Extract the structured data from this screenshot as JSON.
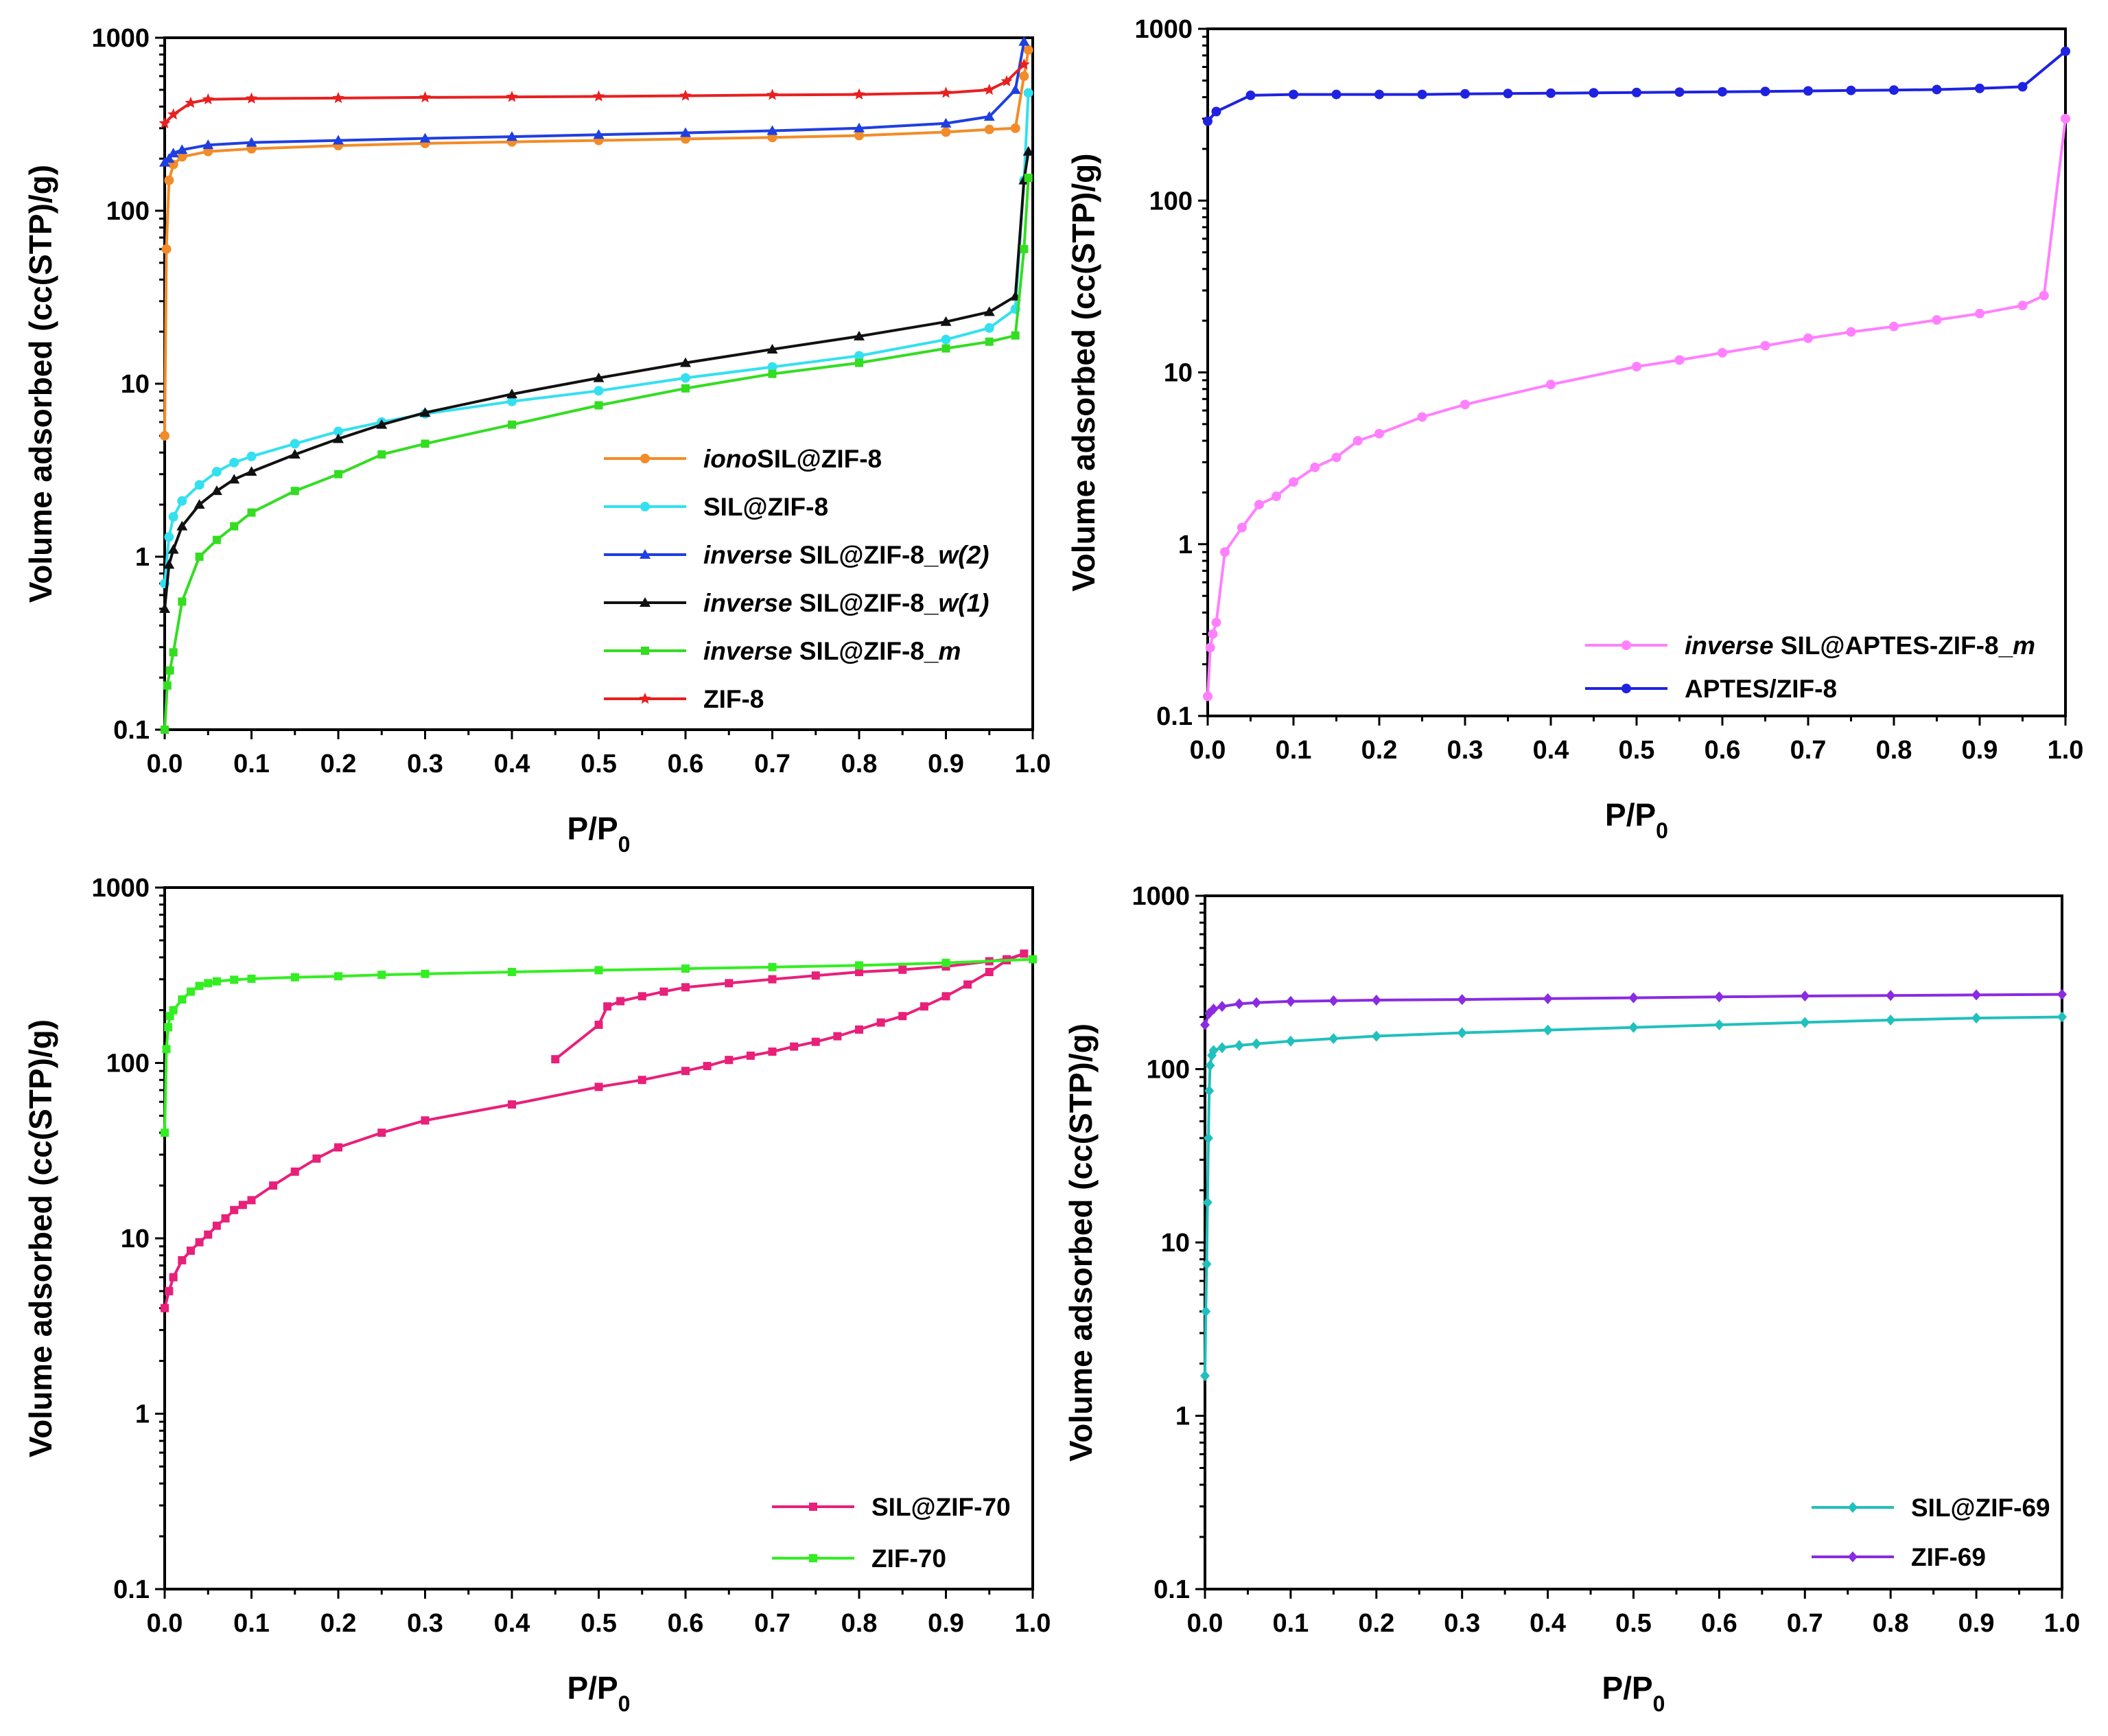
{
  "figure": {
    "panels_count": 4
  },
  "chart_data": [
    {
      "type": "line",
      "title": "",
      "xlabel": "P/P",
      "xlabel_subscript": "0",
      "ylabel": "Volume adsorbed (cc(STP)/g)",
      "yscale": "log",
      "xlim": [
        0,
        1.0
      ],
      "ylim": [
        0.1,
        1000
      ],
      "xticks": [
        "0.0",
        "0.1",
        "0.2",
        "0.3",
        "0.4",
        "0.5",
        "0.6",
        "0.7",
        "0.8",
        "0.9",
        "1.0"
      ],
      "yticks": [
        "0.1",
        "1",
        "10",
        "100",
        "1000"
      ],
      "legend_position": "bottom-right",
      "series": [
        {
          "name": "ionoSIL@ZIF-8",
          "legend_italic": "iono",
          "legend_rest": "SIL@ZIF-8",
          "color": "#F28C28",
          "marker": "circle",
          "x": [
            0.0,
            0.002,
            0.005,
            0.01,
            0.02,
            0.05,
            0.1,
            0.2,
            0.3,
            0.4,
            0.5,
            0.6,
            0.7,
            0.8,
            0.9,
            0.95,
            0.98,
            0.99,
            0.995
          ],
          "y": [
            5,
            60,
            150,
            185,
            205,
            220,
            228,
            238,
            245,
            250,
            255,
            260,
            265,
            272,
            285,
            295,
            300,
            600,
            850
          ]
        },
        {
          "name": "SIL@ZIF-8",
          "legend_italic": "",
          "legend_rest": "SIL@ZIF-8",
          "color": "#33E0F0",
          "marker": "circle",
          "x": [
            0.0,
            0.005,
            0.01,
            0.02,
            0.04,
            0.06,
            0.08,
            0.1,
            0.15,
            0.2,
            0.25,
            0.3,
            0.4,
            0.5,
            0.6,
            0.7,
            0.8,
            0.9,
            0.95,
            0.98,
            0.99,
            0.995
          ],
          "y": [
            0.7,
            1.3,
            1.7,
            2.1,
            2.6,
            3.1,
            3.5,
            3.8,
            4.5,
            5.3,
            6.0,
            6.7,
            7.9,
            9.1,
            10.8,
            12.5,
            14.5,
            18.0,
            21.0,
            27.0,
            150.0,
            480.0
          ]
        },
        {
          "name": "inverse SIL@ZIF-8_w(2)",
          "legend_italic": "inverse",
          "legend_rest": " SIL@ZIF-8_",
          "legend_tail_italic": "w(2)",
          "color": "#1F3FE0",
          "marker": "triangle",
          "x": [
            0.0,
            0.005,
            0.01,
            0.02,
            0.05,
            0.1,
            0.2,
            0.3,
            0.4,
            0.5,
            0.6,
            0.7,
            0.8,
            0.9,
            0.95,
            0.98,
            0.99
          ],
          "y": [
            190,
            200,
            215,
            225,
            240,
            248,
            255,
            262,
            268,
            275,
            282,
            290,
            300,
            320,
            350,
            500,
            950
          ]
        },
        {
          "name": "inverse SIL@ZIF-8_w(1)",
          "legend_italic": "inverse",
          "legend_rest": " SIL@ZIF-8_",
          "legend_tail_italic": "w(1)",
          "color": "#111111",
          "marker": "triangle",
          "x": [
            0.0,
            0.005,
            0.01,
            0.02,
            0.04,
            0.06,
            0.08,
            0.1,
            0.15,
            0.2,
            0.25,
            0.3,
            0.4,
            0.5,
            0.6,
            0.7,
            0.8,
            0.9,
            0.95,
            0.98,
            0.99,
            0.995
          ],
          "y": [
            0.5,
            0.9,
            1.1,
            1.5,
            2.0,
            2.4,
            2.8,
            3.1,
            3.9,
            4.8,
            5.8,
            6.8,
            8.7,
            10.8,
            13.2,
            15.8,
            18.8,
            22.8,
            26.0,
            32.0,
            150.0,
            220.0
          ]
        },
        {
          "name": "inverse SIL@ZIF-8_m",
          "legend_italic": "inverse",
          "legend_rest": " SIL@ZIF-8_",
          "legend_tail_italic": "m",
          "color": "#33DD22",
          "marker": "square",
          "x": [
            0.0,
            0.003,
            0.006,
            0.01,
            0.02,
            0.04,
            0.06,
            0.08,
            0.1,
            0.15,
            0.2,
            0.25,
            0.3,
            0.4,
            0.5,
            0.6,
            0.7,
            0.8,
            0.9,
            0.95,
            0.98,
            0.99,
            0.995
          ],
          "y": [
            0.1,
            0.18,
            0.22,
            0.28,
            0.55,
            1.0,
            1.25,
            1.5,
            1.8,
            2.4,
            3.0,
            3.9,
            4.5,
            5.8,
            7.5,
            9.4,
            11.4,
            13.2,
            16.0,
            17.5,
            19.0,
            60.0,
            155.0
          ]
        },
        {
          "name": "ZIF-8",
          "legend_italic": "",
          "legend_rest": "ZIF-8",
          "color": "#E82020",
          "marker": "star",
          "x": [
            0.0,
            0.01,
            0.03,
            0.05,
            0.1,
            0.2,
            0.3,
            0.4,
            0.5,
            0.6,
            0.7,
            0.8,
            0.9,
            0.95,
            0.97,
            0.99
          ],
          "y": [
            320,
            360,
            420,
            440,
            445,
            448,
            452,
            455,
            458,
            462,
            467,
            470,
            480,
            500,
            560,
            700
          ]
        }
      ]
    },
    {
      "type": "line",
      "title": "",
      "xlabel": "P/P",
      "xlabel_subscript": "0",
      "ylabel": "Volume adsorbed (cc(STP)/g)",
      "yscale": "log",
      "xlim": [
        0,
        1.0
      ],
      "ylim": [
        0.1,
        1000
      ],
      "xticks": [
        "0.0",
        "0.1",
        "0.2",
        "0.3",
        "0.4",
        "0.5",
        "0.6",
        "0.7",
        "0.8",
        "0.9",
        "1.0"
      ],
      "yticks": [
        "0.1",
        "1",
        "10",
        "100",
        "1000"
      ],
      "legend_position": "bottom-right",
      "series": [
        {
          "name": "inverse SIL@APTES-ZIF-8_m",
          "legend_italic": "inverse",
          "legend_rest": " SIL@APTES-ZIF-8_",
          "legend_tail_italic": "m",
          "color": "#FF80FF",
          "marker": "circle",
          "x": [
            0.0,
            0.003,
            0.006,
            0.01,
            0.02,
            0.04,
            0.06,
            0.08,
            0.1,
            0.125,
            0.15,
            0.175,
            0.2,
            0.25,
            0.3,
            0.4,
            0.5,
            0.55,
            0.6,
            0.65,
            0.7,
            0.75,
            0.8,
            0.85,
            0.9,
            0.95,
            0.975,
            1.0
          ],
          "y": [
            0.13,
            0.25,
            0.3,
            0.35,
            0.9,
            1.25,
            1.7,
            1.9,
            2.3,
            2.8,
            3.2,
            4.0,
            4.4,
            5.5,
            6.5,
            8.5,
            10.8,
            11.8,
            13.0,
            14.3,
            15.8,
            17.2,
            18.5,
            20.2,
            22.0,
            24.5,
            28.0,
            300.0
          ]
        },
        {
          "name": "APTES/ZIF-8",
          "legend_italic": "",
          "legend_rest": "APTES/ZIF-8",
          "color": "#1F22E0",
          "marker": "circle",
          "x": [
            0.0,
            0.01,
            0.05,
            0.1,
            0.15,
            0.2,
            0.25,
            0.3,
            0.35,
            0.4,
            0.45,
            0.5,
            0.55,
            0.6,
            0.65,
            0.7,
            0.75,
            0.8,
            0.85,
            0.9,
            0.95,
            1.0
          ],
          "y": [
            290,
            330,
            410,
            415,
            415,
            415,
            415,
            418,
            420,
            422,
            424,
            426,
            428,
            430,
            432,
            435,
            438,
            440,
            443,
            450,
            460,
            740
          ]
        }
      ]
    },
    {
      "type": "line",
      "title": "",
      "xlabel": "P/P",
      "xlabel_subscript": "0",
      "ylabel": "Volume adsorbed (cc(STP)/g)",
      "yscale": "log",
      "xlim": [
        0,
        1.0
      ],
      "ylim": [
        0.1,
        1000
      ],
      "xticks": [
        "0.0",
        "0.1",
        "0.2",
        "0.3",
        "0.4",
        "0.5",
        "0.6",
        "0.7",
        "0.8",
        "0.9",
        "1.0"
      ],
      "yticks": [
        "0.1",
        "1",
        "10",
        "100",
        "1000"
      ],
      "legend_position": "bottom-right",
      "series": [
        {
          "name": "SIL@ZIF-70",
          "legend_italic": "",
          "legend_rest": "SIL@ZIF-70",
          "color": "#E8207A",
          "marker": "square",
          "x": [
            0.0,
            0.005,
            0.01,
            0.02,
            0.03,
            0.04,
            0.05,
            0.06,
            0.07,
            0.08,
            0.09,
            0.1,
            0.125,
            0.15,
            0.175,
            0.2,
            0.25,
            0.3,
            0.4,
            0.5,
            0.55,
            0.6,
            0.625,
            0.65,
            0.675,
            0.7,
            0.725,
            0.75,
            0.775,
            0.8,
            0.825,
            0.85,
            0.875,
            0.9,
            0.925,
            0.95,
            0.97,
            0.99,
            0.97,
            0.95,
            0.9,
            0.85,
            0.8,
            0.75,
            0.7,
            0.65,
            0.6,
            0.575,
            0.55,
            0.525,
            0.51,
            0.5,
            0.45
          ],
          "y": [
            4.0,
            5.0,
            6.0,
            7.5,
            8.5,
            9.5,
            10.5,
            11.8,
            13.0,
            14.5,
            15.5,
            16.5,
            20.0,
            24.0,
            28.5,
            33.0,
            40.0,
            47.0,
            58.0,
            73.0,
            80.0,
            90.0,
            96.0,
            104.0,
            110.0,
            116.0,
            124.0,
            132.0,
            142.0,
            155.0,
            170.0,
            185.0,
            210.0,
            240.0,
            280.0,
            330.0,
            385.0,
            420.0,
            390.0,
            380.0,
            355.0,
            340.0,
            330.0,
            315.0,
            300.0,
            285.0,
            270.0,
            255.0,
            240.0,
            225.0,
            210.0,
            165.0,
            105.0
          ]
        },
        {
          "name": "ZIF-70",
          "legend_italic": "",
          "legend_rest": "ZIF-70",
          "color": "#33EE22",
          "marker": "square",
          "x": [
            0.0,
            0.002,
            0.004,
            0.006,
            0.01,
            0.02,
            0.03,
            0.04,
            0.05,
            0.06,
            0.08,
            0.1,
            0.15,
            0.2,
            0.25,
            0.3,
            0.4,
            0.5,
            0.6,
            0.7,
            0.8,
            0.9,
            1.0
          ],
          "y": [
            40.0,
            120.0,
            160.0,
            185.0,
            200.0,
            230.0,
            255.0,
            275.0,
            285.0,
            292.0,
            298.0,
            302.0,
            308.0,
            312.0,
            318.0,
            322.0,
            330.0,
            338.0,
            345.0,
            352.0,
            360.0,
            372.0,
            390.0
          ]
        }
      ]
    },
    {
      "type": "line",
      "title": "",
      "xlabel": "P/P",
      "xlabel_subscript": "0",
      "ylabel": "Volume adsorbed (cc(STP)/g)",
      "yscale": "log",
      "xlim": [
        0,
        1.0
      ],
      "ylim": [
        0.1,
        1000
      ],
      "xticks": [
        "0.0",
        "0.1",
        "0.2",
        "0.3",
        "0.4",
        "0.5",
        "0.6",
        "0.7",
        "0.8",
        "0.9",
        "1.0"
      ],
      "yticks": [
        "0.1",
        "1",
        "10",
        "100",
        "1000"
      ],
      "legend_position": "bottom-right",
      "series": [
        {
          "name": "SIL@ZIF-69",
          "legend_italic": "",
          "legend_rest": "SIL@ZIF-69",
          "color": "#20C0BC",
          "marker": "diamond",
          "x": [
            0.0,
            0.001,
            0.002,
            0.003,
            0.004,
            0.005,
            0.006,
            0.008,
            0.01,
            0.02,
            0.04,
            0.06,
            0.1,
            0.15,
            0.2,
            0.3,
            0.4,
            0.5,
            0.6,
            0.7,
            0.8,
            0.9,
            1.0
          ],
          "y": [
            1.7,
            4.0,
            7.5,
            17.0,
            40.0,
            75.0,
            105.0,
            120.0,
            128.0,
            133.0,
            137.0,
            140.0,
            145.0,
            150.0,
            155.0,
            162.0,
            168.0,
            174.0,
            180.0,
            186.0,
            192.0,
            197.0,
            200.0
          ]
        },
        {
          "name": "ZIF-69",
          "legend_italic": "",
          "legend_rest": "ZIF-69",
          "color": "#8A2BE2",
          "marker": "diamond",
          "x": [
            0.0,
            0.005,
            0.01,
            0.02,
            0.04,
            0.06,
            0.1,
            0.15,
            0.2,
            0.3,
            0.4,
            0.5,
            0.6,
            0.7,
            0.8,
            0.9,
            1.0
          ],
          "y": [
            180.0,
            210.0,
            222.0,
            230.0,
            238.0,
            242.0,
            246.0,
            248.0,
            250.0,
            252.0,
            255.0,
            258.0,
            261.0,
            264.0,
            266.0,
            268.0,
            270.0
          ]
        }
      ]
    }
  ]
}
